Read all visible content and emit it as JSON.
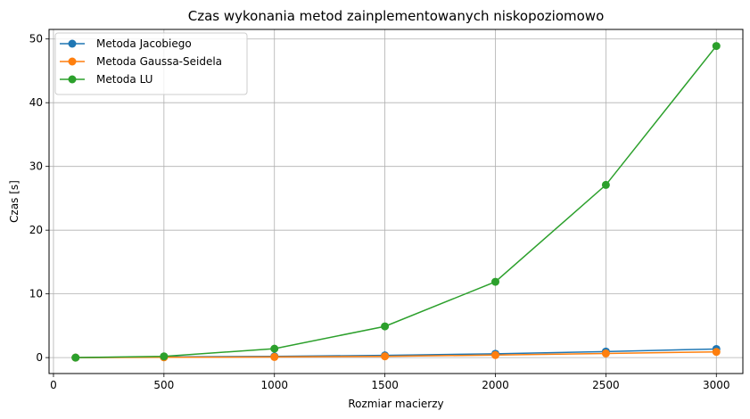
{
  "chart_data": {
    "type": "line",
    "title": "Czas wykonania metod zainplementowanych niskopoziomowo",
    "xlabel": "Rozmiar macierzy",
    "ylabel": "Czas [s]",
    "xlim": [
      -20,
      3120
    ],
    "ylim": [
      -2.5,
      51.5
    ],
    "xticks": [
      0,
      500,
      1000,
      1500,
      2000,
      2500,
      3000
    ],
    "yticks": [
      0,
      10,
      20,
      30,
      40,
      50
    ],
    "grid": true,
    "legend_position": "top-left",
    "x": [
      100,
      500,
      1000,
      1500,
      2000,
      2500,
      3000
    ],
    "series": [
      {
        "name": "Metoda Jacobiego",
        "color": "#1f77b4",
        "marker": "circle",
        "values": [
          0.0,
          0.1,
          0.2,
          0.35,
          0.6,
          0.95,
          1.35
        ]
      },
      {
        "name": "Metoda Gaussa-Seidela",
        "color": "#ff7f0e",
        "marker": "circle",
        "values": [
          0.0,
          0.05,
          0.1,
          0.2,
          0.4,
          0.65,
          0.9
        ]
      },
      {
        "name": "Metoda LU",
        "color": "#2ca02c",
        "marker": "circle",
        "values": [
          0.0,
          0.2,
          1.4,
          4.9,
          11.9,
          27.1,
          48.9
        ]
      }
    ]
  }
}
